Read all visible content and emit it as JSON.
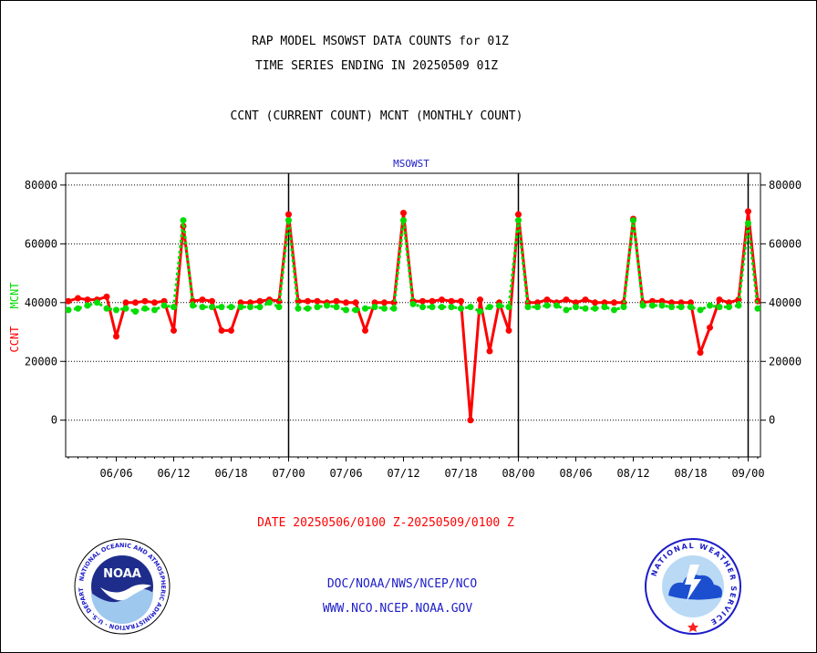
{
  "header": {
    "title_line1": "RAP MODEL MSOWST DATA COUNTS for 01Z",
    "title_line2": "TIME SERIES ENDING IN 20250509 01Z",
    "subtitle": "CCNT (CURRENT COUNT) MCNT (MONTHLY COUNT)"
  },
  "footer": {
    "date_range": "DATE 20250506/0100 Z-20250509/0100 Z",
    "org": "DOC/NOAA/NWS/NCEP/NCO",
    "url": "WWW.NCO.NCEP.NOAA.GOV"
  },
  "logos": {
    "noaa": {
      "text": "NOAA",
      "ring_text": "NATIONAL OCEANIC AND ATMOSPHERIC ADMINISTRATION · U.S. DEPARTMENT OF COMMERCE"
    },
    "nws": {
      "ring_text": "NATIONAL WEATHER SERVICE"
    }
  },
  "chart_data": {
    "type": "line",
    "title": "MSOWST",
    "ylabel_left": "CCNT",
    "ylabel_right": "MCNT",
    "ylim": [
      -12500,
      84000
    ],
    "yticks": [
      0,
      20000,
      40000,
      60000,
      80000
    ],
    "ytick_labels": [
      "0",
      "20000",
      "40000",
      "60000",
      "80000"
    ],
    "xlim": [
      0,
      96
    ],
    "xticks": [
      {
        "x": 5,
        "label": "06/06"
      },
      {
        "x": 11,
        "label": "06/12"
      },
      {
        "x": 17,
        "label": "06/18"
      },
      {
        "x": 23,
        "label": "07/00"
      },
      {
        "x": 29,
        "label": "07/06"
      },
      {
        "x": 35,
        "label": "07/12"
      },
      {
        "x": 41,
        "label": "07/18"
      },
      {
        "x": 47,
        "label": "08/00"
      },
      {
        "x": 53,
        "label": "08/06"
      },
      {
        "x": 59,
        "label": "08/12"
      },
      {
        "x": 65,
        "label": "08/18"
      },
      {
        "x": 71,
        "label": "09/00"
      }
    ],
    "day_boundaries": [
      23,
      47,
      71
    ],
    "grid": true,
    "colors": {
      "ccnt": "#ff0000",
      "mcnt": "#00dd00",
      "axis": "#000000",
      "title": "#1c1cc8"
    },
    "series": [
      {
        "name": "CCNT",
        "x": [
          0,
          1,
          2,
          3,
          4,
          5,
          6,
          7,
          8,
          9,
          10,
          11,
          12,
          13,
          14,
          15,
          16,
          17,
          18,
          19,
          20,
          21,
          22,
          23,
          24,
          25,
          26,
          27,
          28,
          29,
          30,
          31,
          32,
          33,
          34,
          35,
          36,
          37,
          38,
          39,
          40,
          41,
          42,
          43,
          44,
          45,
          46,
          47,
          48,
          49,
          50,
          51,
          52,
          53,
          54,
          55,
          56,
          57,
          58,
          59,
          60,
          61,
          62,
          63,
          64,
          65,
          66,
          67,
          68,
          69,
          70,
          71,
          72
        ],
        "values": [
          40500,
          41500,
          41000,
          41000,
          42000,
          28500,
          40000,
          40000,
          40500,
          40000,
          40500,
          30500,
          66000,
          40500,
          41000,
          40500,
          30500,
          30500,
          40000,
          40000,
          40500,
          41000,
          40500,
          70000,
          40500,
          40500,
          40500,
          40000,
          40500,
          40000,
          40000,
          30500,
          40000,
          40000,
          40000,
          70500,
          40500,
          40500,
          40500,
          41000,
          40500,
          40500,
          0,
          41000,
          23500,
          40000,
          30500,
          70000,
          40000,
          40000,
          41000,
          40000,
          41000,
          40000,
          41000,
          40000,
          40000,
          40000,
          40000,
          68500,
          40000,
          40500,
          40500,
          40000,
          40000,
          40000,
          23000,
          31500,
          41000,
          40000,
          41000,
          71000,
          40500
        ]
      },
      {
        "name": "MCNT",
        "x": [
          0,
          1,
          2,
          3,
          4,
          5,
          6,
          7,
          8,
          9,
          10,
          11,
          12,
          13,
          14,
          15,
          16,
          17,
          18,
          19,
          20,
          21,
          22,
          23,
          24,
          25,
          26,
          27,
          28,
          29,
          30,
          31,
          32,
          33,
          34,
          35,
          36,
          37,
          38,
          39,
          40,
          41,
          42,
          43,
          44,
          45,
          46,
          47,
          48,
          49,
          50,
          51,
          52,
          53,
          54,
          55,
          56,
          57,
          58,
          59,
          60,
          61,
          62,
          63,
          64,
          65,
          66,
          67,
          68,
          69,
          70,
          71,
          72
        ],
        "values": [
          37500,
          38000,
          39000,
          40000,
          38000,
          37500,
          38000,
          37000,
          38000,
          37500,
          39000,
          38500,
          68000,
          39000,
          38500,
          38500,
          38500,
          38500,
          38500,
          38500,
          38500,
          40000,
          38500,
          68000,
          38000,
          38000,
          38500,
          39000,
          38500,
          37500,
          37500,
          38000,
          38500,
          38000,
          38000,
          68000,
          39500,
          38500,
          38500,
          38500,
          38500,
          38000,
          38500,
          37000,
          38500,
          39000,
          38500,
          68000,
          38500,
          38500,
          39000,
          39000,
          37500,
          38500,
          38000,
          38000,
          38500,
          37500,
          38500,
          68000,
          39000,
          39000,
          39000,
          38500,
          38500,
          38500,
          37500,
          39000,
          38500,
          38500,
          39000,
          67000,
          38000
        ]
      }
    ]
  }
}
